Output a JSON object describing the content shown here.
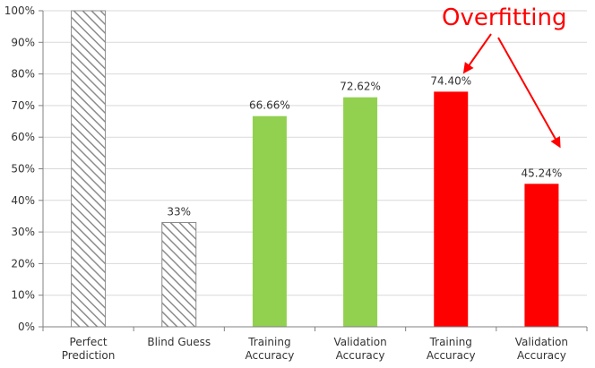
{
  "chart_data": {
    "type": "bar",
    "categories": [
      [
        "Perfect",
        "Prediction"
      ],
      [
        "Blind Guess"
      ],
      [
        "Training",
        "Accuracy"
      ],
      [
        "Validation",
        "Accuracy"
      ],
      [
        "Training",
        "Accuracy"
      ],
      [
        "Validation",
        "Accuracy"
      ]
    ],
    "values": [
      100,
      33,
      66.66,
      72.62,
      74.4,
      45.24
    ],
    "data_labels": [
      "",
      "33%",
      "66.66%",
      "72.62%",
      "74.40%",
      "45.24%"
    ],
    "bar_styles": [
      "hatched",
      "hatched",
      "solid",
      "solid",
      "solid",
      "solid"
    ],
    "bar_colors": [
      "#8c8c8c",
      "#8c8c8c",
      "#92d050",
      "#92d050",
      "#ff0000",
      "#ff0000"
    ],
    "ylim": [
      0,
      100
    ],
    "yticks": [
      "0%",
      "10%",
      "20%",
      "30%",
      "40%",
      "50%",
      "60%",
      "70%",
      "80%",
      "90%",
      "100%"
    ],
    "grid": true,
    "title": "",
    "xlabel": "",
    "ylabel": ""
  },
  "annotation": {
    "text": "Overfitting",
    "color": "#ff0000",
    "arrow_targets": [
      4,
      5
    ]
  }
}
